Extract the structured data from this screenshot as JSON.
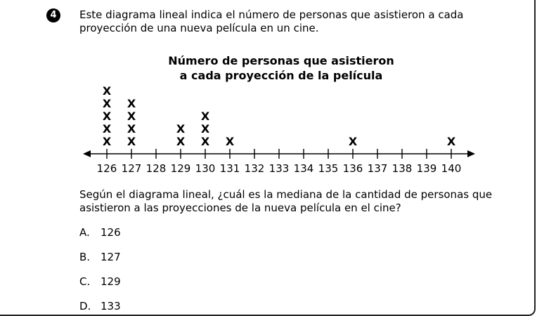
{
  "question": {
    "number": "4",
    "prompt": "Este diagrama lineal indica el número de personas que asistieron a cada proyección de una nueva película en un cine.",
    "text": "Según el diagrama lineal, ¿cuál es la mediana de la cantidad de personas que asistieron a las proyecciones de la nueva película en el cine?"
  },
  "choices": [
    {
      "letter": "A.",
      "value": "126"
    },
    {
      "letter": "B.",
      "value": "127"
    },
    {
      "letter": "C.",
      "value": "129"
    },
    {
      "letter": "D.",
      "value": "133"
    }
  ],
  "chart_data": {
    "type": "scatter",
    "subtype": "line-plot",
    "title_line1": "Número de personas que asistieron",
    "title_line2": "a cada proyección de la película",
    "marker": "X",
    "xlim": [
      126,
      140
    ],
    "ticks": [
      126,
      127,
      128,
      129,
      130,
      131,
      132,
      133,
      134,
      135,
      136,
      137,
      138,
      139,
      140
    ],
    "tick_labels": [
      "126",
      "127",
      "128",
      "129",
      "130",
      "131",
      "132",
      "133",
      "134",
      "135",
      "136",
      "137",
      "138",
      "139",
      "140"
    ],
    "counts": [
      {
        "x": 126,
        "count": 5
      },
      {
        "x": 127,
        "count": 4
      },
      {
        "x": 129,
        "count": 2
      },
      {
        "x": 130,
        "count": 3
      },
      {
        "x": 131,
        "count": 1
      },
      {
        "x": 136,
        "count": 1
      },
      {
        "x": 140,
        "count": 1
      }
    ]
  }
}
